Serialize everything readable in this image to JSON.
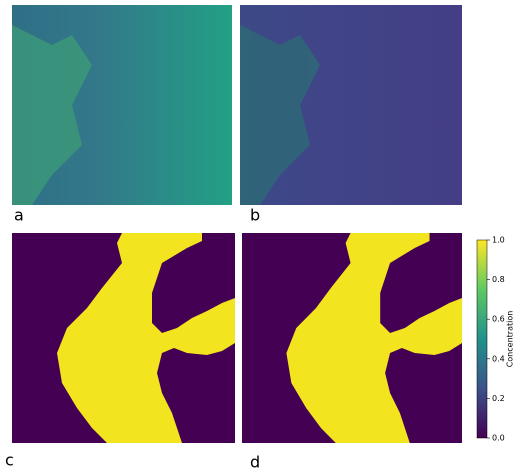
{
  "chart_data": {
    "type": "heatmap",
    "panels": [
      "a",
      "b",
      "c",
      "d"
    ],
    "colorbar": {
      "label": "Concentration",
      "ylim": [
        0,
        1
      ],
      "yticks": [
        {
          "value": 0,
          "label": "0.0"
        },
        0.2,
        0.4,
        0.6,
        0.8,
        {
          "value": 1,
          "label": "1.0"
        }
      ]
    }
  }
}
